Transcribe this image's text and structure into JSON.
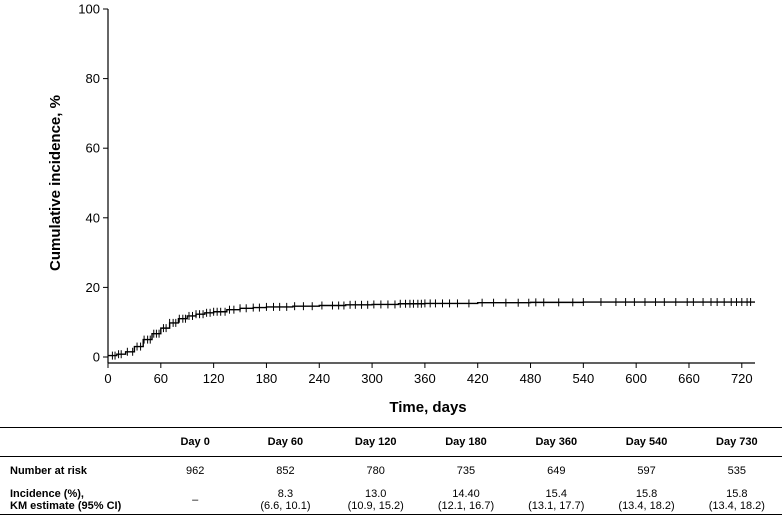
{
  "chart_data": {
    "type": "line",
    "title": "",
    "xlabel": "Time, days",
    "ylabel": "Cumulative incidence, %",
    "xlim": [
      0,
      735
    ],
    "ylim": [
      0,
      100
    ],
    "xticks": [
      0,
      60,
      120,
      180,
      240,
      300,
      360,
      420,
      480,
      540,
      600,
      660,
      720
    ],
    "yticks": [
      0,
      20,
      40,
      60,
      80,
      100
    ],
    "grid": false,
    "series": [
      {
        "name": "",
        "color": "#000000",
        "x": [
          0,
          10,
          20,
          30,
          40,
          50,
          60,
          70,
          80,
          90,
          100,
          110,
          120,
          135,
          150,
          165,
          180,
          210,
          240,
          270,
          300,
          330,
          360,
          420,
          480,
          540,
          600,
          660,
          735
        ],
        "y": [
          0.4,
          0.8,
          1.5,
          3.0,
          5.0,
          6.7,
          8.3,
          9.8,
          11.0,
          11.8,
          12.3,
          12.7,
          13.0,
          13.6,
          14.0,
          14.2,
          14.4,
          14.6,
          14.8,
          15.0,
          15.1,
          15.3,
          15.4,
          15.6,
          15.7,
          15.8,
          15.8,
          15.8,
          15.8
        ]
      }
    ],
    "censor_times": [
      5,
      8,
      12,
      15,
      22,
      28,
      33,
      37,
      41,
      45,
      48,
      52,
      55,
      58,
      63,
      66,
      70,
      74,
      77,
      81,
      85,
      88,
      92,
      96,
      100,
      104,
      108,
      112,
      116,
      120,
      124,
      128,
      133,
      138,
      143,
      150,
      157,
      165,
      172,
      180,
      188,
      195,
      203,
      212,
      222,
      232,
      243,
      255,
      262,
      268,
      275,
      281,
      288,
      295,
      302,
      310,
      318,
      326,
      332,
      338,
      343,
      347,
      352,
      356,
      360,
      366,
      372,
      380,
      388,
      397,
      410,
      425,
      438,
      452,
      466,
      478,
      486,
      495,
      512,
      528,
      540,
      560,
      577,
      588,
      598,
      610,
      622,
      632,
      645,
      658,
      665,
      676,
      685,
      692,
      700,
      708,
      714,
      720,
      726,
      730
    ]
  },
  "risk_table": {
    "headers": [
      "",
      "Day 0",
      "Day 60",
      "Day 120",
      "Day 180",
      "Day 360",
      "Day 540",
      "Day 730"
    ],
    "number_at_risk": {
      "label": "Number at risk",
      "values": [
        "962",
        "852",
        "780",
        "735",
        "649",
        "597",
        "535"
      ]
    },
    "incidence": {
      "label_line1": "Incidence (%),",
      "label_line2": "KM estimate (95% CI)",
      "values": [
        {
          "est": "–",
          "ci": ""
        },
        {
          "est": "8.3",
          "ci": "(6.6, 10.1)"
        },
        {
          "est": "13.0",
          "ci": "(10.9, 15.2)"
        },
        {
          "est": "14.40",
          "ci": "(12.1, 16.7)"
        },
        {
          "est": "15.4",
          "ci": "(13.1, 17.7)"
        },
        {
          "est": "15.8",
          "ci": "(13.4, 18.2)"
        },
        {
          "est": "15.8",
          "ci": "(13.4, 18.2)"
        }
      ]
    }
  }
}
